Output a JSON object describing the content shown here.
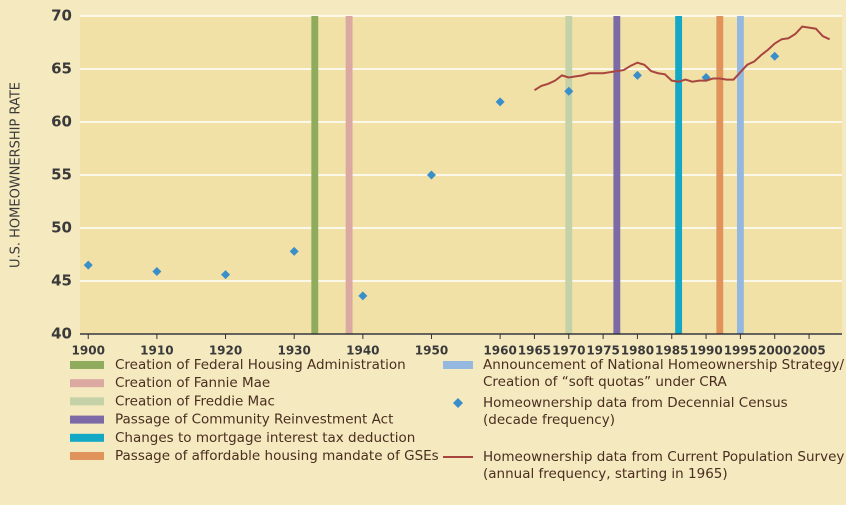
{
  "chart_data": {
    "type": "combo",
    "y_label": "U.S. HOMEOWNERSHIP RATE",
    "xlim": [
      1898.8,
      2009.8
    ],
    "xticks": [
      1900,
      1910,
      1920,
      1930,
      1940,
      1950,
      1960,
      1965,
      1970,
      1975,
      1980,
      1985,
      1990,
      1995,
      2000,
      2005
    ],
    "ylim": [
      40,
      70
    ],
    "yticks": [
      40,
      45,
      50,
      55,
      60,
      65,
      70
    ],
    "grid": true,
    "events": [
      {
        "legend_lines": [
          "Creation of Federal Housing Administration"
        ],
        "year": 1933,
        "color": "#8fab5e"
      },
      {
        "legend_lines": [
          "Creation of Fannie Mae"
        ],
        "year": 1938,
        "color": "#dba8a2"
      },
      {
        "legend_lines": [
          "Creation of Freddie Mac"
        ],
        "year": 1970,
        "color": "#c5d1a6"
      },
      {
        "legend_lines": [
          "Passage of Community Reinvestment Act"
        ],
        "year": 1977,
        "color": "#7b6aa6"
      },
      {
        "legend_lines": [
          "Changes to mortgage interest tax deduction"
        ],
        "year": 1986,
        "color": "#12a8c6"
      },
      {
        "legend_lines": [
          "Passage of affordable housing mandate of GSEs"
        ],
        "year": 1992,
        "color": "#e0935a"
      },
      {
        "legend_lines": [
          "Announcement of National Homeownership Strategy/",
          "Creation of “soft quotas” under CRA"
        ],
        "year": 1995,
        "color": "#95b8e0"
      }
    ],
    "series": [
      {
        "type": "scatter",
        "legend_lines": [
          "Homeownership data from Decennial Census",
          "(decade frequency)"
        ],
        "color": "#3a8fca",
        "x": [
          1900,
          1910,
          1920,
          1930,
          1940,
          1950,
          1960,
          1970,
          1980,
          1990,
          2000
        ],
        "values": [
          46.5,
          45.9,
          45.6,
          47.8,
          43.6,
          55.0,
          61.9,
          62.9,
          64.4,
          64.2,
          66.2
        ]
      },
      {
        "type": "line",
        "legend_lines": [
          "Homeownership data from Current Population Survey",
          "(annual frequency, starting in 1965)"
        ],
        "color": "#a8453f",
        "x": [
          1965,
          1966,
          1967,
          1968,
          1969,
          1970,
          1971,
          1972,
          1973,
          1974,
          1975,
          1976,
          1977,
          1978,
          1979,
          1980,
          1981,
          1982,
          1983,
          1984,
          1985,
          1986,
          1987,
          1988,
          1989,
          1990,
          1991,
          1992,
          1993,
          1994,
          1995,
          1996,
          1997,
          1998,
          1999,
          2000,
          2001,
          2002,
          2003,
          2004,
          2005,
          2006,
          2007,
          2008
        ],
        "values": [
          63.0,
          63.4,
          63.6,
          63.9,
          64.4,
          64.2,
          64.3,
          64.4,
          64.6,
          64.6,
          64.6,
          64.7,
          64.8,
          64.9,
          65.3,
          65.6,
          65.4,
          64.8,
          64.6,
          64.5,
          63.9,
          63.8,
          64.0,
          63.8,
          63.9,
          63.9,
          64.1,
          64.1,
          64.0,
          64.0,
          64.7,
          65.4,
          65.7,
          66.3,
          66.8,
          67.4,
          67.8,
          67.9,
          68.3,
          69.0,
          68.9,
          68.8,
          68.1,
          67.8
        ]
      }
    ]
  }
}
